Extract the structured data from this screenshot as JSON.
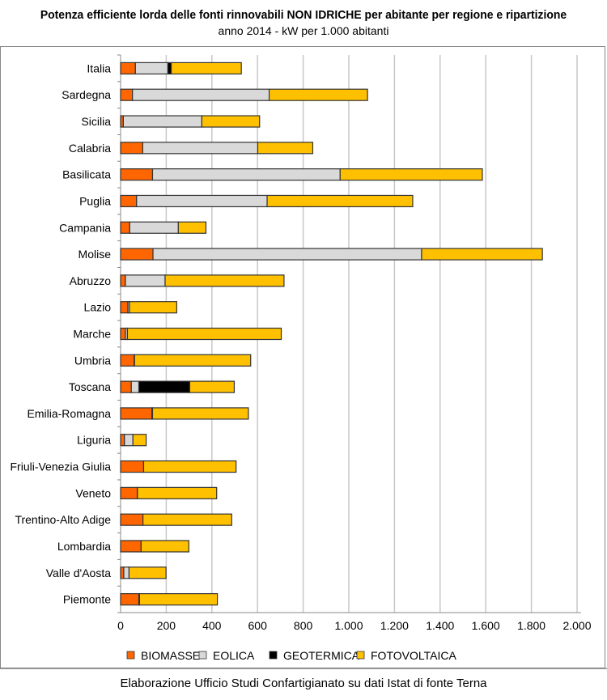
{
  "chart_data": {
    "type": "bar",
    "orientation": "horizontal",
    "stacked": true,
    "title": "Potenza efficiente lorda delle fonti rinnovabili NON IDRICHE per abitante per regione e ripartizione",
    "subtitle": "anno 2014 - kW per 1.000 abitanti",
    "source": "Elaborazione Ufficio Studi Confartigianato su dati Istat di fonte Terna",
    "xlim": [
      0,
      2000
    ],
    "xticks": [
      "0",
      "200",
      "400",
      "600",
      "800",
      "1.000",
      "1.200",
      "1.400",
      "1.600",
      "1.800",
      "2.000"
    ],
    "grid": true,
    "legend_position": "bottom",
    "categories": [
      "Italia",
      "Sardegna",
      "Sicilia",
      "Calabria",
      "Basilicata",
      "Puglia",
      "Campania",
      "Molise",
      "Abruzzo",
      "Lazio",
      "Marche",
      "Umbria",
      "Toscana",
      "Emilia-Romagna",
      "Liguria",
      "Friuli-Venezia Giulia",
      "Veneto",
      "Trentino-Alto Adige",
      "Lombardia",
      "Valle d'Aosta",
      "Piemonte"
    ],
    "series": [
      {
        "name": "BIOMASSE",
        "color": "#FF6600",
        "values": [
          65,
          52,
          12,
          97,
          140,
          70,
          40,
          142,
          21,
          32,
          21,
          59,
          47,
          137,
          17,
          101,
          73,
          98,
          90,
          14,
          80
        ]
      },
      {
        "name": "EOLICA",
        "color": "#D9D9D9",
        "values": [
          142,
          599,
          344,
          504,
          822,
          572,
          213,
          1177,
          174,
          7,
          9,
          2,
          33,
          3,
          37,
          0,
          1,
          0,
          0,
          23,
          3
        ]
      },
      {
        "name": "GEOTERMICA",
        "color": "#000000",
        "values": [
          15,
          0,
          0,
          0,
          0,
          0,
          0,
          0,
          0,
          0,
          0,
          0,
          223,
          0,
          0,
          0,
          0,
          0,
          0,
          0,
          0
        ]
      },
      {
        "name": "FOTOVOLTAICA",
        "color": "#FFC000",
        "values": [
          307,
          431,
          253,
          241,
          623,
          638,
          121,
          529,
          521,
          207,
          674,
          509,
          195,
          420,
          58,
          405,
          347,
          389,
          209,
          162,
          341
        ]
      }
    ]
  }
}
